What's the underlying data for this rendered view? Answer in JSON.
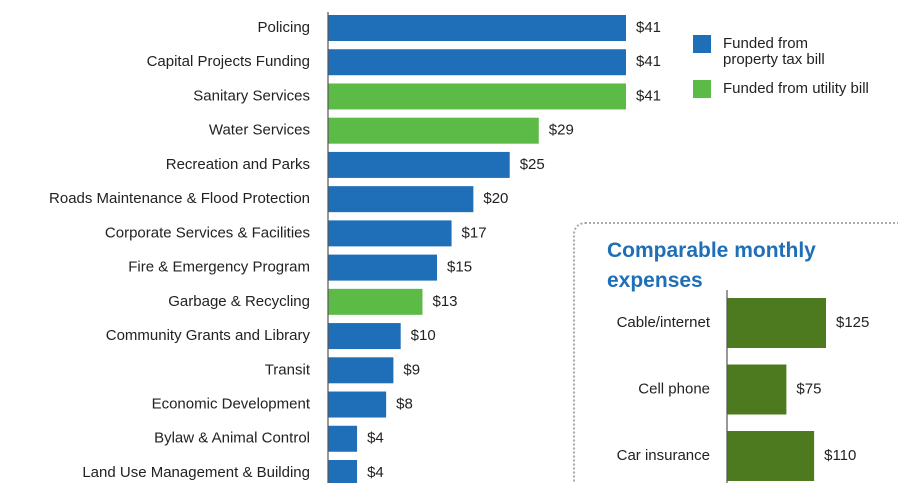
{
  "chart_data": [
    {
      "type": "bar",
      "orientation": "horizontal",
      "categories": [
        "Policing",
        "Capital Projects Funding",
        "Sanitary Services",
        "Water Services",
        "Recreation and Parks",
        "Roads Maintenance & Flood Protection",
        "Corporate Services & Facilities",
        "Fire & Emergency Program",
        "Garbage & Recycling",
        "Community Grants and Library",
        "Transit",
        "Economic Development",
        "Bylaw & Animal Control",
        "Land Use Management & Building"
      ],
      "series": [
        {
          "name": "Funded from property tax bill",
          "color": "#1f6fb8",
          "values": [
            41,
            41,
            null,
            null,
            25,
            20,
            17,
            15,
            null,
            10,
            9,
            8,
            4,
            4
          ],
          "value_labels": [
            "$41",
            "$41",
            null,
            null,
            "$25",
            "$20",
            "$17",
            "$15",
            null,
            "$10",
            "$9",
            "$8",
            "$4",
            "$4"
          ]
        },
        {
          "name": "Funded from utility bill",
          "color": "#5cba47",
          "values": [
            null,
            null,
            41,
            29,
            null,
            null,
            null,
            null,
            13,
            null,
            null,
            null,
            null,
            null
          ],
          "value_labels": [
            null,
            null,
            "$41",
            "$29",
            null,
            null,
            null,
            null,
            "$13",
            null,
            null,
            null,
            null,
            null
          ]
        }
      ],
      "xlim": [
        0,
        41
      ],
      "legend": "upper right"
    },
    {
      "type": "bar",
      "orientation": "horizontal",
      "title": "Comparable monthly expenses",
      "categories": [
        "Cable/internet",
        "Cell phone",
        "Car insurance"
      ],
      "values": [
        125,
        75,
        110
      ],
      "value_labels": [
        "$125",
        "$75",
        "$110"
      ],
      "color": "#4e7a1f",
      "xlim": [
        0,
        125
      ]
    }
  ]
}
